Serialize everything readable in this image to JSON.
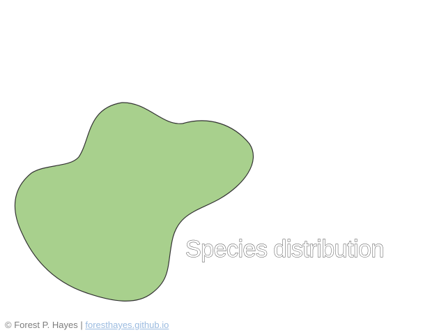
{
  "map": {
    "region_fill": "#a8d08d",
    "region_outline": "#333333",
    "legend_label": "Species distribution"
  },
  "footer": {
    "credit": "© Forest P. Hayes",
    "separator": "|",
    "link_text": "foresthayes.github.io",
    "link_color": "#9bbbe0"
  }
}
